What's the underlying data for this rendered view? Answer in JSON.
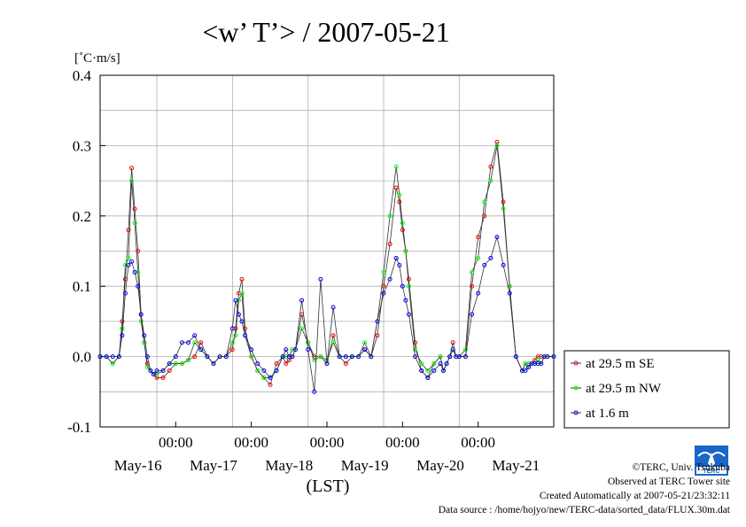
{
  "chart_data": {
    "type": "line",
    "title": "<w’ T’> / 2007-05-21",
    "ylabel": "[˚C·m/s]",
    "xlabel": "(LST)",
    "ylim": [
      -0.1,
      0.4
    ],
    "yticks": [
      "0.4",
      "0.3",
      "0.2",
      "0.1",
      "0.0",
      "-0.1"
    ],
    "xlim": [
      0,
      144
    ],
    "time_ticks": [
      "00:00",
      "00:00",
      "00:00",
      "00:00",
      "00:00"
    ],
    "day_labels": [
      "May-16",
      "May-17",
      "May-18",
      "May-19",
      "May-20",
      "May-21"
    ],
    "grid": true,
    "legend_position": "right",
    "series": [
      {
        "name": "at 29.5 m SE",
        "color": "#ff0000",
        "x": [
          0,
          2,
          4,
          6,
          7,
          8,
          9,
          10,
          11,
          12,
          13,
          14,
          15,
          16,
          17,
          18,
          20,
          22,
          24,
          26,
          28,
          30,
          32,
          34,
          36,
          38,
          40,
          42,
          43,
          44,
          45,
          46,
          48,
          50,
          52,
          54,
          56,
          58,
          59,
          60,
          61,
          62,
          64,
          66,
          68,
          70,
          72,
          74,
          76,
          78,
          80,
          82,
          84,
          86,
          88,
          90,
          92,
          94,
          95,
          96,
          97,
          98,
          100,
          102,
          104,
          106,
          108,
          109,
          110,
          111,
          112,
          113,
          114,
          116,
          118,
          120,
          122,
          124,
          126,
          128,
          130,
          132,
          134,
          135,
          136,
          137,
          138,
          139,
          140,
          141,
          142,
          144
        ],
        "values": [
          0.0,
          0.0,
          -0.01,
          0.0,
          0.05,
          0.11,
          0.18,
          0.268,
          0.21,
          0.15,
          0.06,
          0.02,
          -0.01,
          -0.02,
          -0.025,
          -0.03,
          -0.03,
          -0.02,
          -0.01,
          -0.01,
          -0.005,
          0.0,
          0.02,
          0.0,
          -0.01,
          0.0,
          0.0,
          0.01,
          0.04,
          0.09,
          0.11,
          0.04,
          0.0,
          -0.02,
          -0.03,
          -0.04,
          -0.01,
          0.0,
          -0.01,
          -0.005,
          0.0,
          0.01,
          0.06,
          0.02,
          0.0,
          0.0,
          -0.01,
          0.03,
          0.0,
          -0.01,
          0.0,
          0.0,
          0.01,
          0.0,
          0.03,
          0.1,
          0.16,
          0.24,
          0.22,
          0.18,
          0.15,
          0.11,
          0.02,
          -0.02,
          -0.03,
          -0.01,
          0.0,
          -0.02,
          -0.01,
          0.0,
          0.02,
          0.0,
          0.0,
          0.0,
          0.1,
          0.17,
          0.2,
          0.27,
          0.305,
          0.22,
          0.1,
          0.0,
          -0.02,
          -0.01,
          -0.015,
          -0.01,
          -0.005,
          0.0,
          0.0,
          0.0,
          0.0,
          0.0
        ]
      },
      {
        "name": "at 29.5 m NW",
        "color": "#00ff00",
        "x": [
          0,
          2,
          4,
          6,
          7,
          8,
          9,
          10,
          11,
          12,
          13,
          14,
          15,
          16,
          17,
          18,
          20,
          22,
          24,
          26,
          28,
          30,
          32,
          34,
          36,
          38,
          40,
          42,
          43,
          44,
          45,
          46,
          48,
          50,
          52,
          54,
          56,
          58,
          59,
          60,
          61,
          62,
          64,
          66,
          68,
          70,
          72,
          74,
          76,
          78,
          80,
          82,
          84,
          86,
          88,
          90,
          92,
          94,
          95,
          96,
          97,
          98,
          100,
          102,
          104,
          106,
          108,
          109,
          110,
          111,
          112,
          113,
          114,
          116,
          118,
          120,
          122,
          124,
          126,
          128,
          130,
          132,
          134,
          135,
          136,
          137,
          138,
          139,
          140,
          141,
          142,
          144
        ],
        "values": [
          0.0,
          0.0,
          -0.01,
          0.0,
          0.04,
          0.13,
          0.14,
          0.25,
          0.19,
          0.12,
          0.05,
          0.02,
          -0.015,
          -0.02,
          -0.025,
          -0.025,
          -0.02,
          -0.01,
          -0.01,
          -0.01,
          -0.005,
          0.02,
          0.01,
          0.0,
          -0.01,
          0.0,
          0.0,
          0.02,
          0.03,
          0.08,
          0.09,
          0.03,
          0.0,
          -0.02,
          -0.03,
          -0.03,
          -0.02,
          0.0,
          0.0,
          0.0,
          0.01,
          0.01,
          0.04,
          0.02,
          -0.005,
          0.0,
          -0.005,
          0.02,
          0.0,
          0.0,
          0.0,
          0.0,
          0.02,
          0.0,
          0.05,
          0.12,
          0.2,
          0.27,
          0.23,
          0.19,
          0.15,
          0.1,
          0.01,
          -0.01,
          -0.02,
          -0.01,
          0.0,
          -0.02,
          -0.01,
          0.0,
          0.01,
          0.0,
          0.0,
          0.01,
          0.12,
          0.14,
          0.22,
          0.25,
          0.3,
          0.21,
          0.1,
          0.0,
          -0.02,
          -0.01,
          -0.01,
          -0.01,
          -0.01,
          -0.005,
          -0.01,
          0.0,
          0.0,
          0.0
        ]
      },
      {
        "name": "at 1.6 m",
        "color": "#0000ff",
        "x": [
          0,
          2,
          4,
          6,
          7,
          8,
          9,
          10,
          11,
          12,
          13,
          14,
          15,
          16,
          17,
          18,
          20,
          22,
          24,
          26,
          28,
          30,
          32,
          34,
          36,
          38,
          40,
          42,
          43,
          44,
          45,
          46,
          48,
          50,
          52,
          54,
          56,
          58,
          59,
          60,
          61,
          62,
          64,
          66,
          68,
          70,
          72,
          74,
          76,
          78,
          80,
          82,
          84,
          86,
          88,
          90,
          92,
          94,
          95,
          96,
          97,
          98,
          100,
          102,
          104,
          106,
          108,
          109,
          110,
          111,
          112,
          113,
          114,
          116,
          118,
          120,
          122,
          124,
          126,
          128,
          130,
          132,
          134,
          135,
          136,
          137,
          138,
          139,
          140,
          141,
          142,
          144
        ],
        "values": [
          0.0,
          0.0,
          0.0,
          0.0,
          0.03,
          0.09,
          0.13,
          0.135,
          0.12,
          0.1,
          0.06,
          0.03,
          0.0,
          -0.02,
          -0.025,
          -0.02,
          -0.02,
          -0.01,
          0.0,
          0.02,
          0.02,
          0.03,
          0.01,
          0.0,
          -0.01,
          0.0,
          0.0,
          0.04,
          0.08,
          0.06,
          0.05,
          0.03,
          0.01,
          -0.01,
          -0.02,
          -0.03,
          -0.02,
          0.0,
          0.01,
          0.0,
          0.0,
          0.01,
          0.08,
          0.01,
          -0.05,
          0.11,
          -0.01,
          0.07,
          0.0,
          0.0,
          0.0,
          0.0,
          0.01,
          0.0,
          0.05,
          0.09,
          0.11,
          0.14,
          0.13,
          0.1,
          0.08,
          0.06,
          0.0,
          -0.02,
          -0.03,
          -0.02,
          -0.01,
          -0.02,
          -0.01,
          0.0,
          0.01,
          0.0,
          0.0,
          0.0,
          0.06,
          0.09,
          0.13,
          0.14,
          0.17,
          0.13,
          0.09,
          0.0,
          -0.02,
          -0.02,
          -0.015,
          -0.01,
          -0.01,
          -0.01,
          -0.01,
          0.0,
          0.0,
          0.0
        ]
      }
    ]
  },
  "footer": {
    "copyright": "©TERC, Univ. Tsukuba",
    "observed": "Observed at TERC Tower site",
    "created": "Created Automatically at 2007-05-21/23:32:11",
    "source": "Data source : /home/hojyo/new/TERC-data/sorted_data/FLUX.30m.dat",
    "logo_text": "TERC"
  }
}
